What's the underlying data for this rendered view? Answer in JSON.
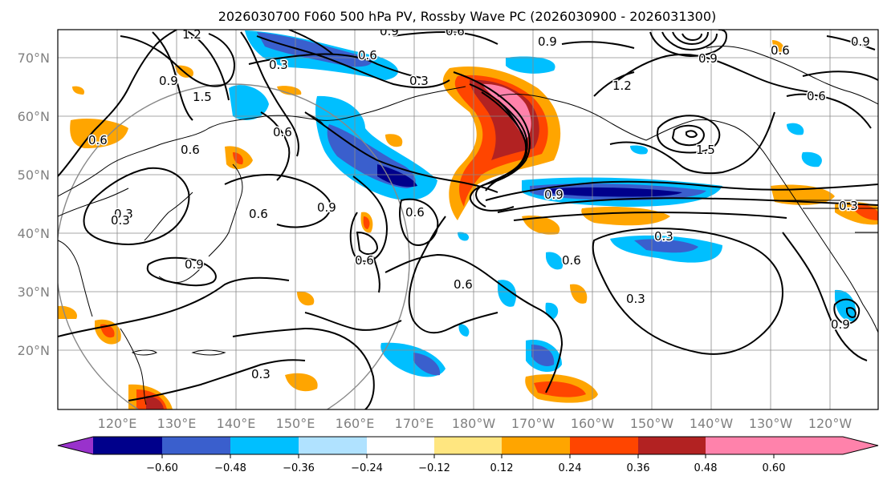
{
  "title": "2026030700 F060 500 hPa PV, Rossby Wave PC (2026030900 - 2026031300)",
  "map": {
    "lat_labels": [
      "70°N",
      "60°N",
      "50°N",
      "40°N",
      "30°N",
      "20°N"
    ],
    "lon_labels": [
      "120°E",
      "130°E",
      "140°E",
      "150°E",
      "160°E",
      "170°E",
      "180°W",
      "170°W",
      "160°W",
      "150°W",
      "140°W",
      "130°W",
      "120°W"
    ]
  },
  "contour_labels": [
    "0.9",
    "0.6",
    "0.9",
    "0.9",
    "0.3",
    "0.6",
    "0.3",
    "1.5",
    "0.9",
    "0.6",
    "1.2",
    "0.6",
    "0.6",
    "1.2",
    "0.9",
    "1.5",
    "0.9",
    "0.3",
    "0.6",
    "0.6",
    "0.3",
    "0.6",
    "0.9",
    "0.6",
    "0.3",
    "0.3",
    "0.6",
    "0.3",
    "0.9",
    "0.6",
    "0.3",
    "0.9",
    "0.6"
  ],
  "colorbar": {
    "tick_labels": [
      "−0.60",
      "−0.48",
      "−0.36",
      "−0.24",
      "−0.12",
      "0.12",
      "0.24",
      "0.36",
      "0.48",
      "0.60"
    ],
    "colors": [
      "#9932cc",
      "#00008b",
      "#3a5fcd",
      "#00bfff",
      "#b0e2ff",
      "#ffffff",
      "#ffe680",
      "#ffa500",
      "#ff4500",
      "#b22222",
      "#ff82ab"
    ]
  }
}
